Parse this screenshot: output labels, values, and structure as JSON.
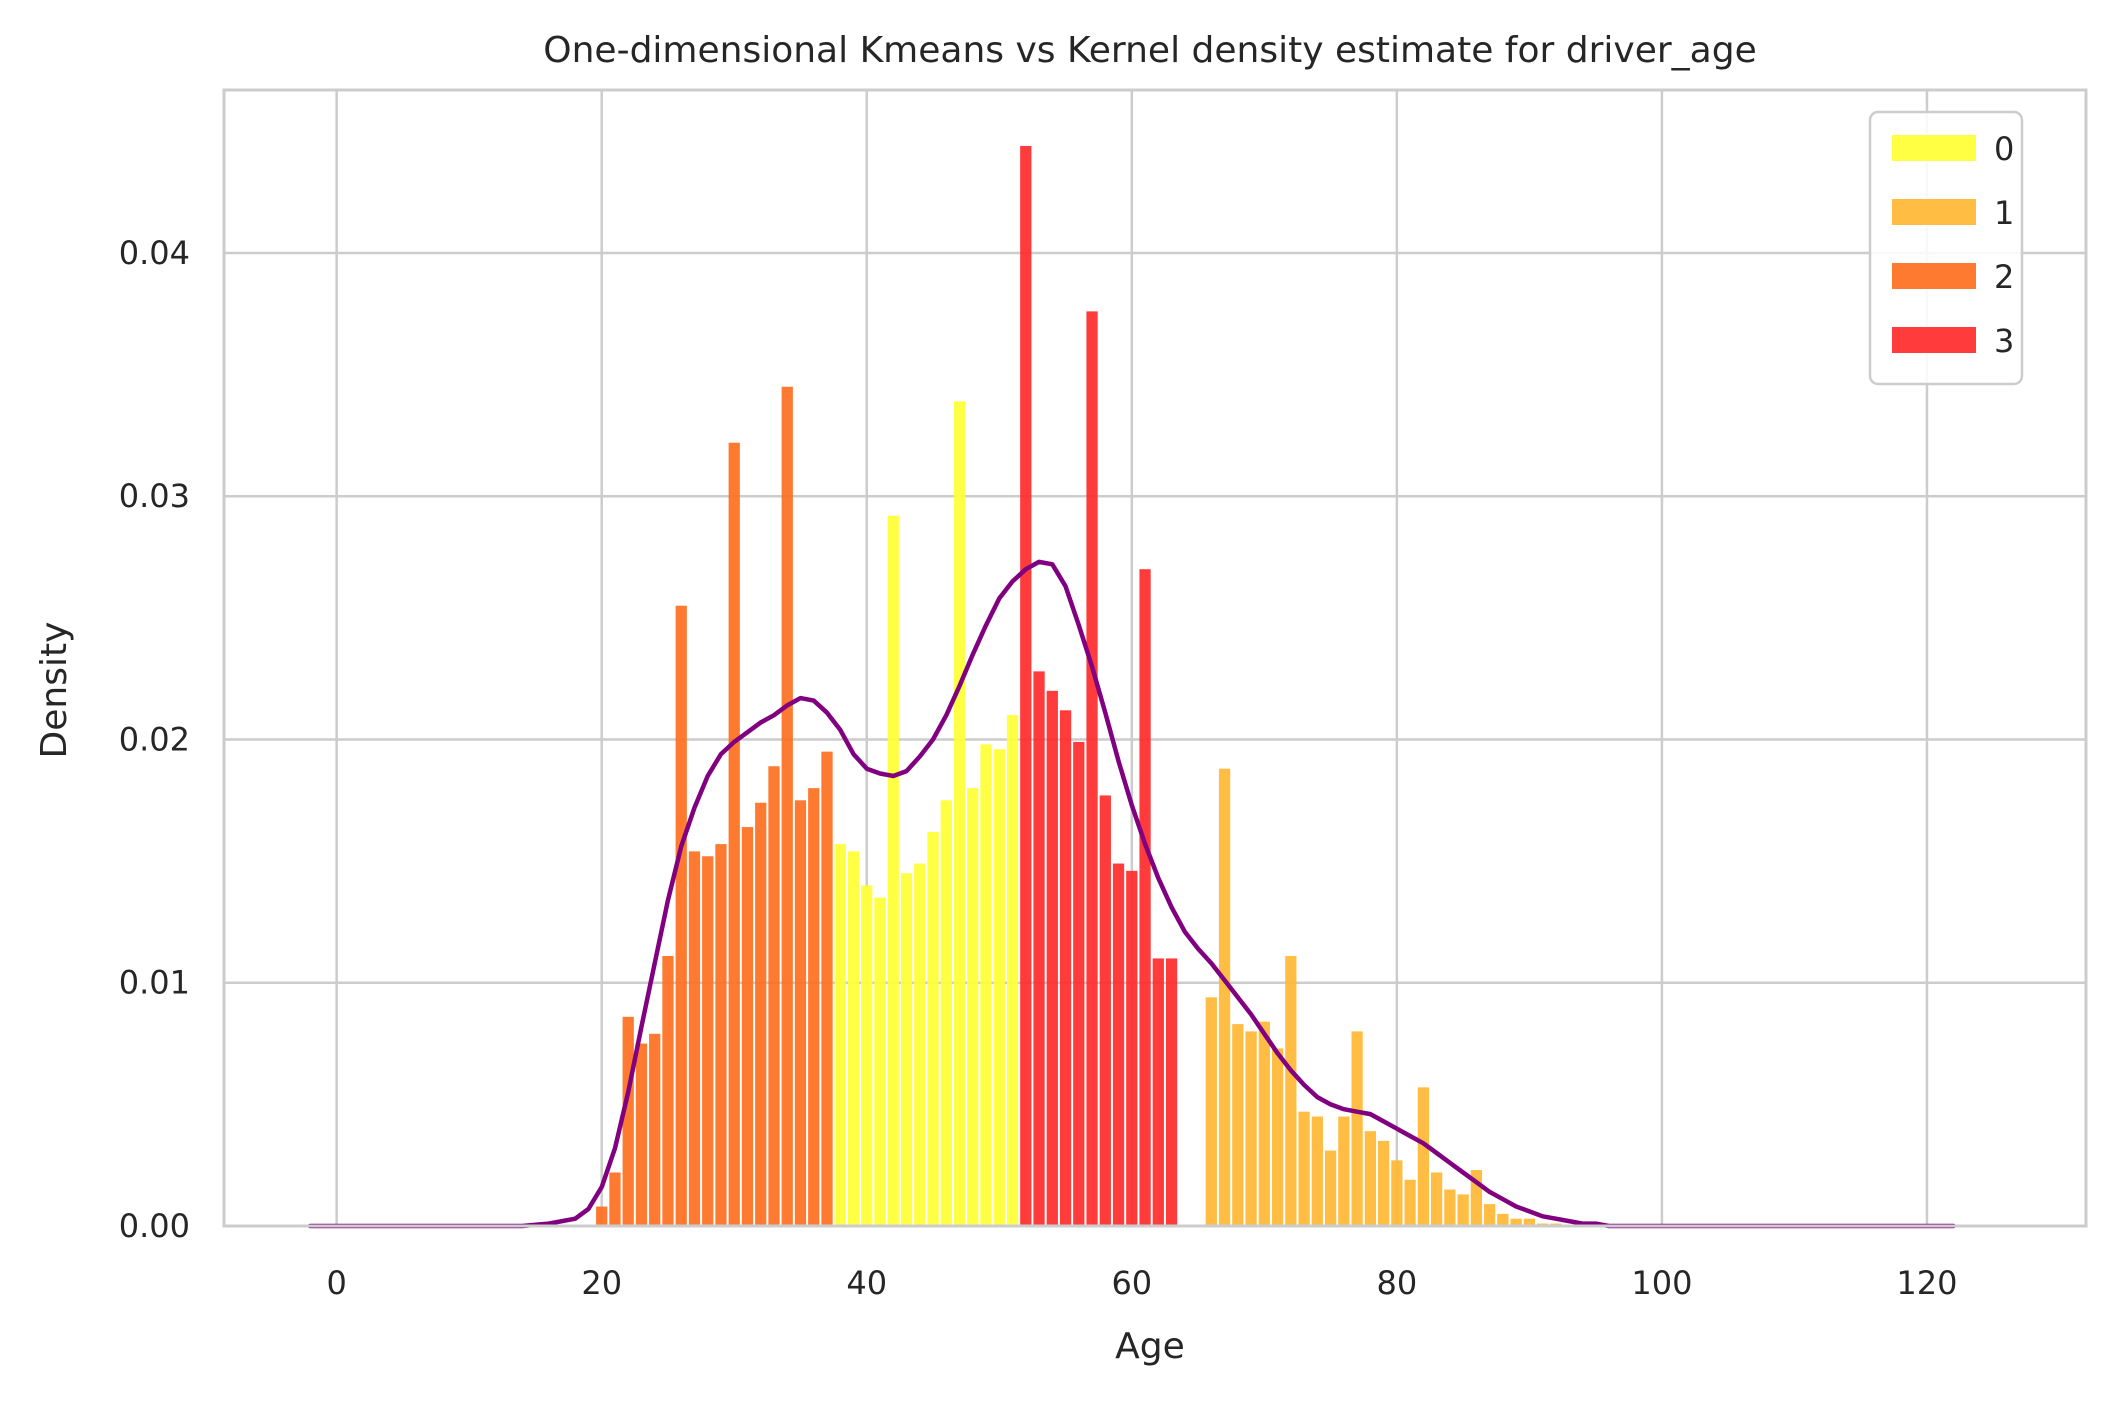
{
  "chart_data": {
    "type": "bar",
    "title": "One-dimensional Kmeans vs Kernel density estimate for driver_age",
    "xlabel": "Age",
    "ylabel": "Density",
    "xlim": [
      -8.5,
      132
    ],
    "ylim": [
      0,
      0.0467
    ],
    "x_ticks": [
      0,
      20,
      40,
      60,
      80,
      100,
      120
    ],
    "x_tick_labels": [
      "0",
      "20",
      "40",
      "60",
      "80",
      "100",
      "120"
    ],
    "y_ticks": [
      0,
      0.01,
      0.02,
      0.03,
      0.04
    ],
    "y_tick_labels": [
      "0.00",
      "0.01",
      "0.02",
      "0.03",
      "0.04"
    ],
    "grid": true,
    "legend_position": "top-right",
    "bin_width": 1,
    "bar_width": 0.85,
    "series": [
      {
        "name": "0",
        "color": "#ffff33",
        "x": [
          38,
          39,
          40,
          41,
          42,
          43,
          44,
          45,
          46,
          47,
          48,
          49,
          50,
          51
        ],
        "values": [
          0.0157,
          0.0154,
          0.014,
          0.0135,
          0.0292,
          0.0145,
          0.0149,
          0.0162,
          0.0175,
          0.0339,
          0.018,
          0.0198,
          0.0196,
          0.021
        ]
      },
      {
        "name": "1",
        "color": "#ffb833",
        "x": [
          66,
          67,
          68,
          69,
          70,
          71,
          72,
          73,
          74,
          75,
          76,
          77,
          78,
          79,
          80,
          81,
          82,
          83,
          84,
          85,
          86,
          87,
          88,
          89,
          90,
          91,
          92
        ],
        "values": [
          0.0094,
          0.0188,
          0.0083,
          0.008,
          0.0084,
          0.0073,
          0.0111,
          0.0047,
          0.0045,
          0.0031,
          0.0045,
          0.008,
          0.0039,
          0.0035,
          0.0027,
          0.0019,
          0.0057,
          0.0022,
          0.0015,
          0.0013,
          0.0023,
          0.0009,
          0.0005,
          0.0003,
          0.0003,
          0.0001,
          0.0001
        ]
      },
      {
        "name": "2",
        "color": "#ff6f1f",
        "x": [
          20,
          21,
          22,
          23,
          24,
          25,
          26,
          27,
          28,
          29,
          30,
          31,
          32,
          33,
          34,
          35,
          36,
          37
        ],
        "values": [
          0.0008,
          0.0022,
          0.0086,
          0.0075,
          0.0079,
          0.0111,
          0.0255,
          0.0154,
          0.0152,
          0.0157,
          0.0322,
          0.0164,
          0.0174,
          0.0189,
          0.0345,
          0.0175,
          0.018,
          0.0195
        ]
      },
      {
        "name": "3",
        "color": "#ff2a2a",
        "x": [
          52,
          53,
          54,
          55,
          56,
          57,
          58,
          59,
          60,
          61,
          62,
          63,
          64,
          65
        ],
        "values": [
          0.0444,
          0.0228,
          0.022,
          0.0212,
          0.0199,
          0.0376,
          0.0177,
          0.0149,
          0.0146,
          0.027,
          0.011,
          0.011,
          0.0,
          0.0
        ]
      }
    ],
    "kde": {
      "color": "#800080",
      "x": [
        -2,
        5,
        10,
        14,
        16,
        18,
        19,
        20,
        21,
        22,
        23,
        24,
        25,
        26,
        27,
        28,
        29,
        30,
        31,
        32,
        33,
        34,
        35,
        36,
        37,
        38,
        39,
        40,
        41,
        42,
        43,
        44,
        45,
        46,
        47,
        48,
        49,
        50,
        51,
        52,
        53,
        54,
        55,
        56,
        57,
        58,
        59,
        60,
        61,
        62,
        63,
        64,
        65,
        66,
        67,
        68,
        69,
        70,
        71,
        72,
        73,
        74,
        75,
        76,
        77,
        78,
        79,
        80,
        81,
        82,
        83,
        84,
        85,
        86,
        87,
        88,
        89,
        90,
        91,
        92,
        93,
        94,
        95,
        96,
        98,
        100,
        105,
        110,
        115,
        120,
        122
      ],
      "y": [
        0.0,
        0.0,
        0.0,
        0.0,
        0.0001,
        0.0003,
        0.0007,
        0.0016,
        0.0032,
        0.0055,
        0.0082,
        0.0108,
        0.0134,
        0.0156,
        0.0172,
        0.0185,
        0.0194,
        0.0199,
        0.0203,
        0.0207,
        0.021,
        0.0214,
        0.0217,
        0.0216,
        0.0211,
        0.0204,
        0.0194,
        0.0188,
        0.0186,
        0.0185,
        0.0187,
        0.0193,
        0.02,
        0.021,
        0.0222,
        0.0235,
        0.0247,
        0.0258,
        0.0265,
        0.027,
        0.0273,
        0.0272,
        0.0263,
        0.0247,
        0.023,
        0.0211,
        0.0191,
        0.0173,
        0.0157,
        0.0143,
        0.0131,
        0.0121,
        0.0114,
        0.0108,
        0.0101,
        0.0094,
        0.0087,
        0.0079,
        0.0071,
        0.0064,
        0.0058,
        0.0053,
        0.005,
        0.0048,
        0.0047,
        0.0046,
        0.0043,
        0.004,
        0.0037,
        0.0034,
        0.003,
        0.0026,
        0.0022,
        0.0018,
        0.0014,
        0.0011,
        0.0008,
        0.0006,
        0.0004,
        0.0003,
        0.0002,
        0.0001,
        0.0001,
        0.0,
        0.0,
        0.0,
        0.0,
        0.0,
        0.0,
        0.0,
        0.0
      ]
    }
  }
}
